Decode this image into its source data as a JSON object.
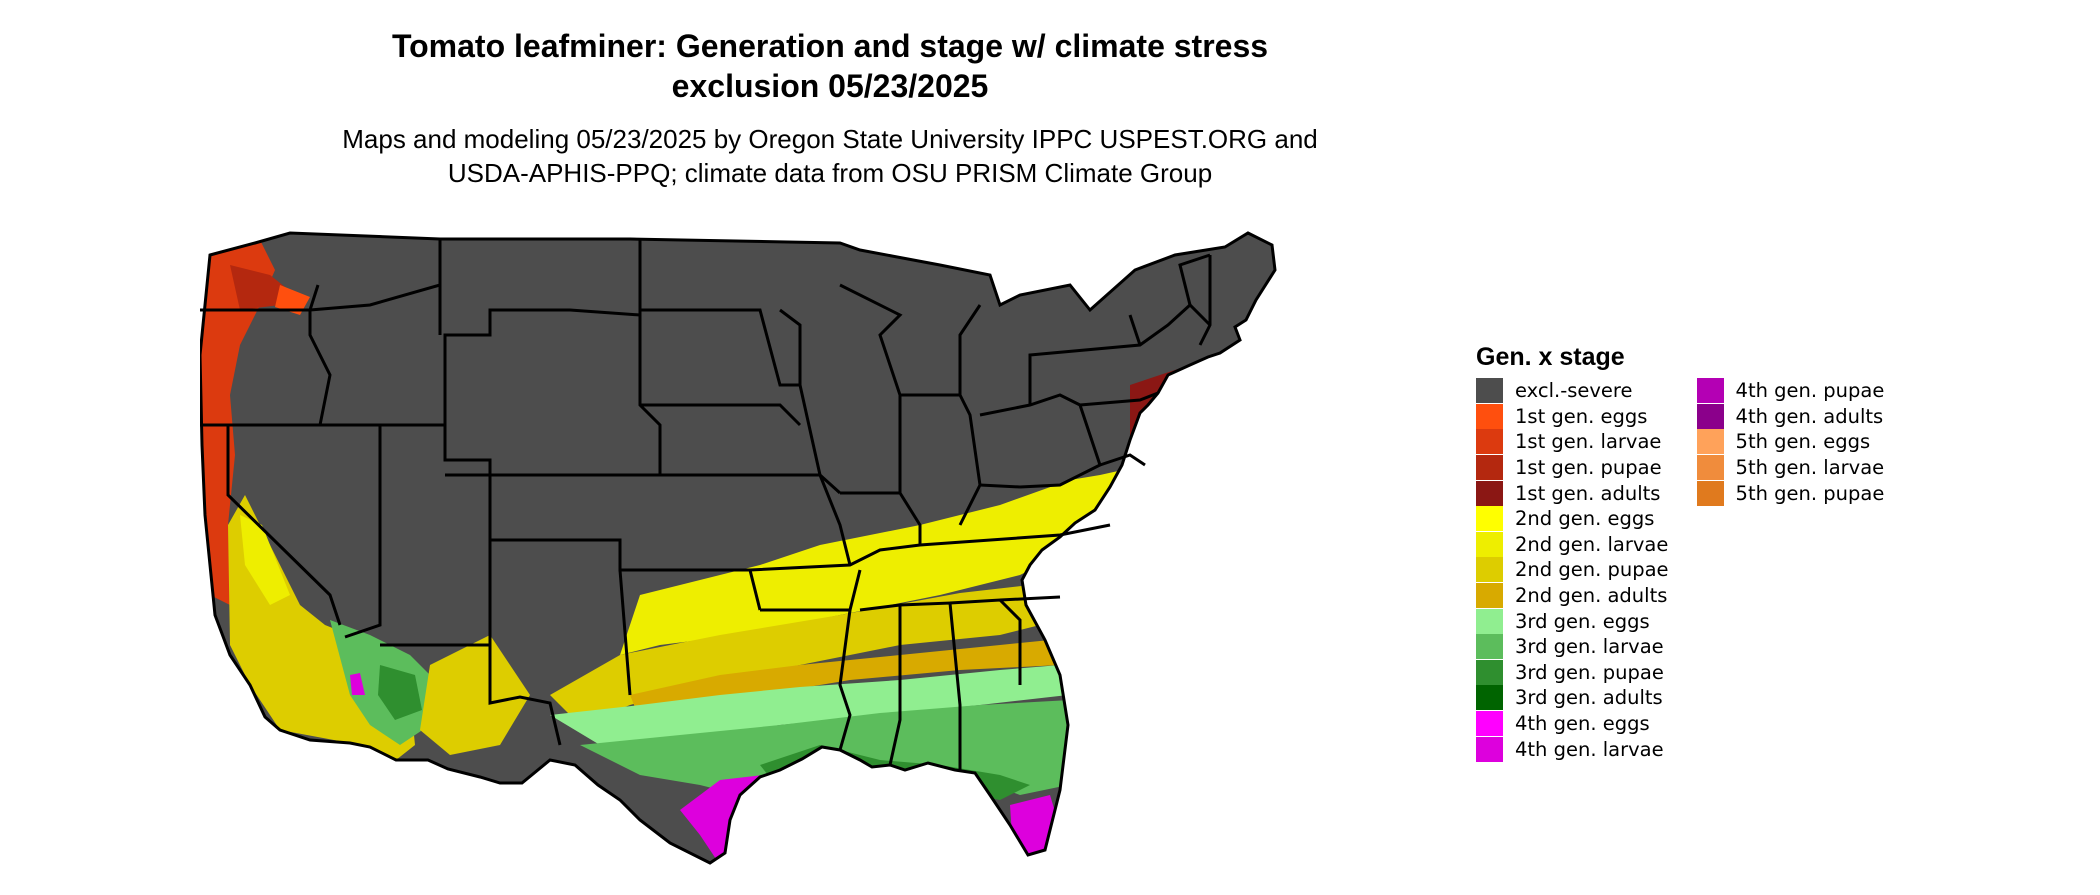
{
  "title_line1": "Tomato leafminer: Generation and stage w/ climate stress",
  "title_line2": "exclusion 05/23/2025",
  "subtitle_line1": "Maps and modeling 05/23/2025 by Oregon State University IPPC USPEST.ORG and",
  "subtitle_line2": "USDA-APHIS-PPQ; climate data from OSU PRISM Climate Group",
  "legend": {
    "title": "Gen. x stage",
    "items": [
      {
        "label": "excl.-severe",
        "color": "#4d4d4d"
      },
      {
        "label": "1st gen. eggs",
        "color": "#ff4f0e"
      },
      {
        "label": "1st gen. larvae",
        "color": "#dc3a0f"
      },
      {
        "label": "1st gen. pupae",
        "color": "#b4280f"
      },
      {
        "label": "1st gen. adults",
        "color": "#8b1714"
      },
      {
        "label": "2nd gen. eggs",
        "color": "#ffff00"
      },
      {
        "label": "2nd gen. larvae",
        "color": "#eeee00"
      },
      {
        "label": "2nd gen. pupae",
        "color": "#ddcd00"
      },
      {
        "label": "2nd gen. adults",
        "color": "#d8aa00"
      },
      {
        "label": "3rd gen. eggs",
        "color": "#90ee90"
      },
      {
        "label": "3rd gen. larvae",
        "color": "#5cbd5c"
      },
      {
        "label": "3rd gen. pupae",
        "color": "#2f8f2f"
      },
      {
        "label": "3rd gen. adults",
        "color": "#006400"
      },
      {
        "label": "4th gen. eggs",
        "color": "#ff00ff"
      },
      {
        "label": "4th gen. larvae",
        "color": "#dd00dd"
      },
      {
        "label": "4th gen. pupae",
        "color": "#b400b4"
      },
      {
        "label": "4th gen. adults",
        "color": "#8b008b"
      },
      {
        "label": "5th gen. eggs",
        "color": "#ffa25a"
      },
      {
        "label": "5th gen. larvae",
        "color": "#f08c3c"
      },
      {
        "label": "5th gen. pupae",
        "color": "#e07a1e"
      }
    ]
  }
}
